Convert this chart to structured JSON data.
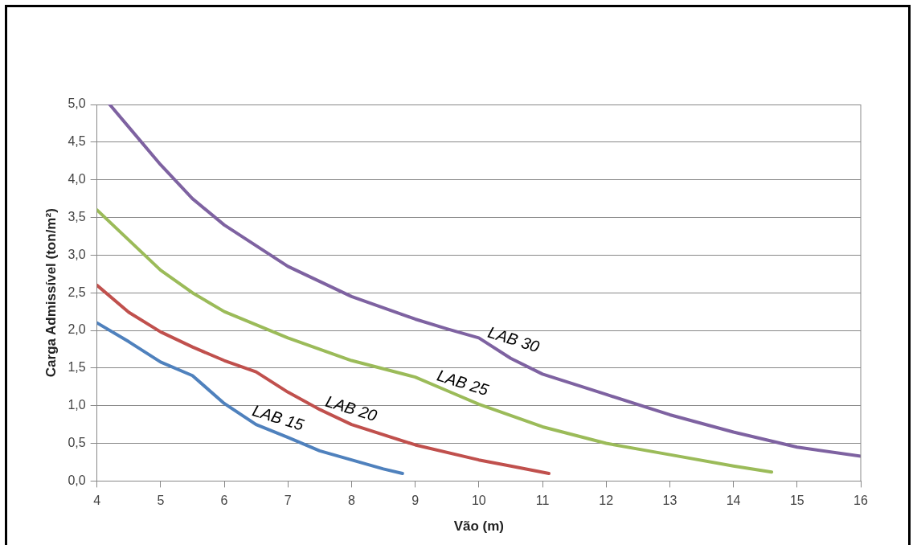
{
  "chart_data": {
    "type": "line",
    "xlabel": "Vão (m)",
    "ylabel": "Carga Admissível (ton/m²)",
    "xlim": [
      4,
      16
    ],
    "xticks": [
      4,
      5,
      6,
      7,
      8,
      9,
      10,
      11,
      12,
      13,
      14,
      15,
      16
    ],
    "ylim": [
      0,
      5
    ],
    "yticks": [
      {
        "value": 0,
        "label": "0,0"
      },
      {
        "value": 0.5,
        "label": "0,5"
      },
      {
        "value": 1,
        "label": "1,0"
      },
      {
        "value": 1.5,
        "label": "1,5"
      },
      {
        "value": 2,
        "label": "2,0"
      },
      {
        "value": 2.5,
        "label": "2,5"
      },
      {
        "value": 3,
        "label": "3,0"
      },
      {
        "value": 3.5,
        "label": "3,5"
      },
      {
        "value": 4,
        "label": "4,0"
      },
      {
        "value": 4.5,
        "label": "4,5"
      },
      {
        "value": 5,
        "label": "5,0"
      }
    ],
    "grid": "y",
    "legend": false,
    "marker": "none",
    "line_style": "solid",
    "series": [
      {
        "name": "LAB 15",
        "color": "#4f81bd",
        "x": [
          4,
          4.5,
          5,
          5.5,
          6,
          6.5,
          7,
          7.5,
          8,
          8.5,
          8.8
        ],
        "values": [
          2.1,
          1.85,
          1.58,
          1.4,
          1.03,
          0.75,
          0.58,
          0.4,
          0.28,
          0.16,
          0.1
        ]
      },
      {
        "name": "LAB 20",
        "color": "#c0504d",
        "x": [
          4,
          4.5,
          5,
          5.5,
          6,
          6.5,
          7,
          7.5,
          8,
          9,
          10,
          10.5,
          11.1
        ],
        "values": [
          2.6,
          2.24,
          1.98,
          1.78,
          1.6,
          1.45,
          1.18,
          0.95,
          0.75,
          0.48,
          0.28,
          0.2,
          0.1
        ]
      },
      {
        "name": "LAB 25",
        "color": "#9bbb59",
        "x": [
          4,
          4.5,
          5,
          5.5,
          6,
          7,
          8,
          9,
          9.5,
          10,
          11,
          12,
          13,
          14,
          14.6
        ],
        "values": [
          3.6,
          3.2,
          2.8,
          2.5,
          2.25,
          1.9,
          1.6,
          1.38,
          1.2,
          1.02,
          0.72,
          0.5,
          0.35,
          0.2,
          0.12
        ]
      },
      {
        "name": "LAB 30",
        "color": "#7e62a1",
        "x": [
          4.2,
          4.5,
          5,
          5.5,
          6,
          7,
          8,
          9,
          9.5,
          10,
          10.5,
          11,
          12,
          13,
          14,
          15,
          16
        ],
        "values": [
          5,
          4.7,
          4.2,
          3.75,
          3.4,
          2.85,
          2.45,
          2.15,
          2.02,
          1.9,
          1.63,
          1.42,
          1.15,
          0.88,
          0.65,
          0.45,
          0.33
        ]
      }
    ]
  }
}
